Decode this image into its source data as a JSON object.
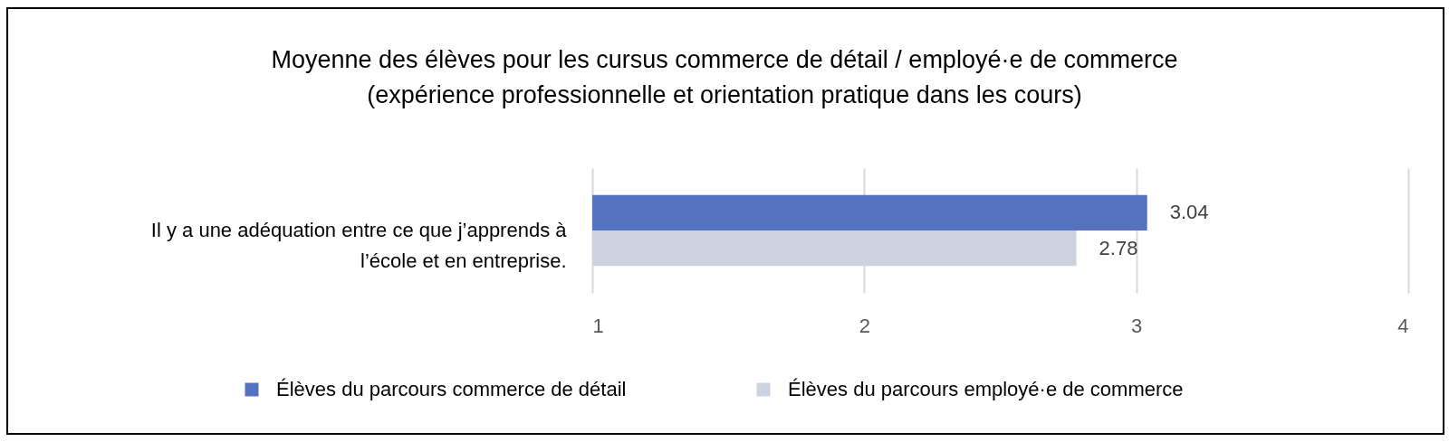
{
  "chart_data": {
    "type": "bar",
    "orientation": "horizontal",
    "title": "Moyenne des élèves pour les cursus commerce de détail / employé·e de commerce",
    "subtitle": "(expérience professionnelle et orientation pratique dans les cours)",
    "categories": [
      "Il y a une adéquation entre ce que j’apprends à l’école et en entreprise."
    ],
    "series": [
      {
        "name": "Élèves du parcours commerce de détail",
        "color": "#5472c0",
        "values": [
          3.04
        ]
      },
      {
        "name": "Élèves du parcours employé·e de commerce",
        "color": "#cdd3de",
        "values": [
          2.78
        ]
      }
    ],
    "xlim": [
      1,
      4
    ],
    "xticks": [
      1,
      2,
      3,
      4
    ],
    "grid": "x",
    "legend": "bottom",
    "data_labels": true
  }
}
